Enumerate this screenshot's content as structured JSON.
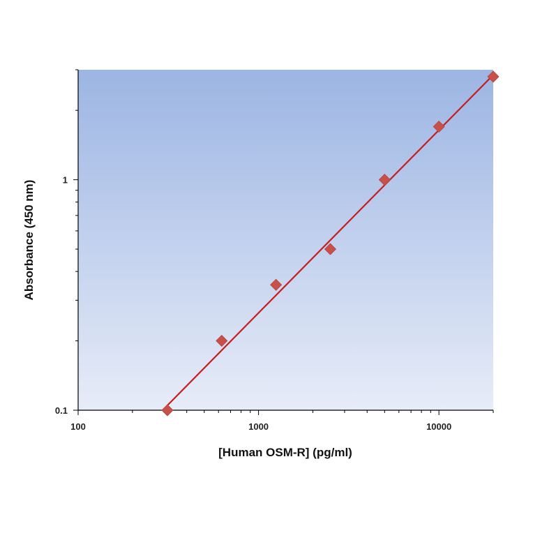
{
  "chart_data": {
    "type": "scatter",
    "title": "",
    "xlabel": "[Human OSM-R] (pg/ml)",
    "ylabel": "Absorbance (450 nm)",
    "x_scale": "log",
    "y_scale": "log",
    "xlim": [
      100,
      20000
    ],
    "ylim": [
      0.1,
      3
    ],
    "x_ticks": [
      {
        "value": 100,
        "label": "100"
      },
      {
        "value": 1000,
        "label": "1000"
      },
      {
        "value": 10000,
        "label": "10000"
      }
    ],
    "y_ticks": [
      {
        "value": 0.1,
        "label": "0.1"
      },
      {
        "value": 1,
        "label": "1"
      }
    ],
    "grid": false,
    "legend": "none",
    "series": [
      {
        "type": "scatter",
        "marker": "diamond",
        "x": [
          312.5,
          625,
          1250,
          2500,
          5000,
          10000,
          20000
        ],
        "y": [
          0.1,
          0.2,
          0.35,
          0.5,
          1.0,
          1.7,
          2.8
        ]
      },
      {
        "type": "line",
        "x": [
          312.5,
          20000
        ],
        "y": [
          0.105,
          2.85
        ]
      }
    ],
    "colors": {
      "marker": "#c8504a",
      "line": "#c41e1e",
      "plot_bg_top": "#9cb5e3",
      "plot_bg_bottom": "#e7ecf8"
    }
  }
}
